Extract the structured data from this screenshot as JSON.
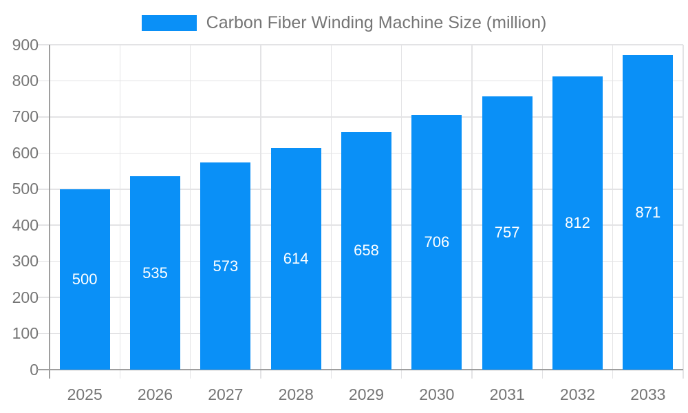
{
  "legend": {
    "label": "Carbon Fiber Winding Machine Size (million)"
  },
  "chart_data": {
    "type": "bar",
    "title": "Carbon Fiber Winding Machine Size (million)",
    "categories": [
      "2025",
      "2026",
      "2027",
      "2028",
      "2029",
      "2030",
      "2031",
      "2032",
      "2033"
    ],
    "values": [
      500,
      535,
      573,
      614,
      658,
      706,
      757,
      812,
      871
    ],
    "yticks": [
      0,
      100,
      200,
      300,
      400,
      500,
      600,
      700,
      800,
      900
    ],
    "xlabel": "",
    "ylabel": "",
    "ylim": [
      0,
      900
    ],
    "grid": true,
    "legend_position": "top-center",
    "colors": {
      "bar": "#0a90f7",
      "bar_value_text": "#ffffff",
      "axis_line": "#9e9e9e",
      "gridline": "#e3e3e5",
      "tick_text": "#757575",
      "legend_text": "#757575",
      "background": "#ffffff"
    }
  }
}
